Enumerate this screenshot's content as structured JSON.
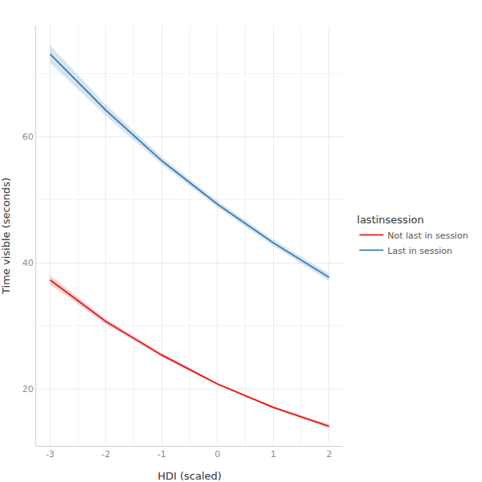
{
  "chart_data": {
    "type": "line",
    "x_label": "HDI (scaled)",
    "y_label": "Time visible (seconds)",
    "legend_title": "lastinsession",
    "x": [
      -3,
      -2,
      -1,
      0,
      1,
      2
    ],
    "series": [
      {
        "name": "Not last in session",
        "color": "#e41a1c",
        "values": [
          37.3,
          30.7,
          25.4,
          20.8,
          17.1,
          14.1
        ],
        "lower": [
          36.6,
          30.3,
          25.1,
          20.6,
          16.9,
          13.8
        ],
        "upper": [
          38.0,
          31.1,
          25.7,
          21.0,
          17.3,
          14.4
        ]
      },
      {
        "name": "Last in session",
        "color": "#377eb8",
        "values": [
          73.1,
          64.2,
          56.2,
          49.3,
          43.2,
          37.7
        ],
        "lower": [
          71.7,
          63.3,
          55.6,
          48.8,
          42.7,
          37.1
        ],
        "upper": [
          74.5,
          65.1,
          56.8,
          49.8,
          43.7,
          38.3
        ]
      }
    ],
    "xlim": [
      -3.25,
      2.25
    ],
    "xticks": [
      -3,
      -2,
      -1,
      0,
      1,
      2
    ],
    "ylim": [
      11,
      77.6
    ],
    "yticks": [
      20,
      40,
      60
    ],
    "grid": true,
    "legend": "right"
  }
}
